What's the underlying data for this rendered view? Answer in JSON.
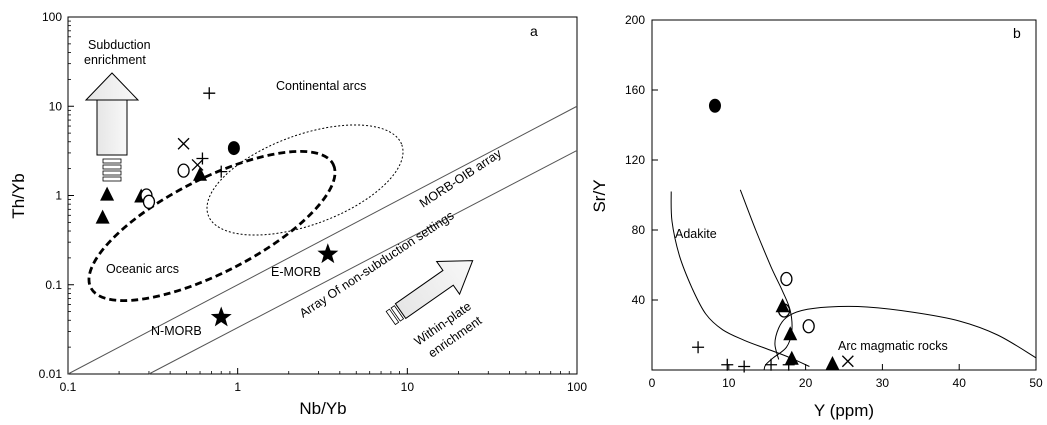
{
  "chart_data": [
    {
      "type": "scatter",
      "panel_label": "a",
      "xlabel": "Nb/Yb",
      "ylabel": "Th/Yb",
      "xscale": "log",
      "yscale": "log",
      "xlim": [
        0.1,
        100
      ],
      "ylim": [
        0.01,
        100
      ],
      "x_ticks": [
        "0.1",
        "1",
        "10",
        "100"
      ],
      "y_ticks": [
        "0.01",
        "0.1",
        "1",
        "10",
        "100"
      ],
      "x_tick_values": [
        0.1,
        1,
        10,
        100
      ],
      "y_tick_values": [
        0.01,
        0.1,
        1,
        10,
        100
      ],
      "grid": false,
      "annotations": {
        "subduction": [
          "Subduction",
          "enrichment"
        ],
        "continental_arcs": "Continental arcs",
        "oceanic_arcs": "Oceanic arcs",
        "morb_oib": "MORB-OIB array",
        "non_subduction": "Array Of non-subduction settings",
        "emorb": "E-MORB",
        "nmorb": "N-MORB",
        "within_plate": [
          "Within-plate",
          "enrichment"
        ]
      },
      "series": [
        {
          "marker": "filled-triangle",
          "points": [
            [
              0.17,
              1.05
            ],
            [
              0.16,
              0.58
            ],
            [
              0.27,
              1.0
            ],
            [
              0.6,
              1.75
            ]
          ]
        },
        {
          "marker": "open-circle",
          "points": [
            [
              0.29,
              1.0
            ],
            [
              0.3,
              0.85
            ],
            [
              0.48,
              1.9
            ]
          ]
        },
        {
          "marker": "plus",
          "points": [
            [
              0.68,
              14
            ],
            [
              0.62,
              2.6
            ],
            [
              0.8,
              1.85
            ]
          ]
        },
        {
          "marker": "cross",
          "points": [
            [
              0.48,
              3.8
            ],
            [
              0.58,
              2.2
            ]
          ]
        },
        {
          "marker": "filled-circle",
          "points": [
            [
              0.95,
              3.4
            ]
          ]
        },
        {
          "marker": "filled-star",
          "points": [
            [
              0.8,
              0.043
            ],
            [
              3.4,
              0.22
            ]
          ]
        }
      ],
      "reference_lines": [
        {
          "points": [
            [
              0.1,
              0.01
            ],
            [
              100,
              10
            ]
          ]
        },
        {
          "points": [
            [
              0.3,
              0.01
            ],
            [
              100,
              3.2
            ]
          ]
        }
      ]
    },
    {
      "type": "scatter",
      "panel_label": "b",
      "xlabel": "Y (ppm)",
      "ylabel": "Sr/Y",
      "xlim": [
        0,
        50
      ],
      "ylim": [
        0,
        200
      ],
      "x_ticks": [
        "0",
        "10",
        "20",
        "30",
        "40",
        "50"
      ],
      "y_ticks": [
        "40",
        "80",
        "120",
        "160",
        "200"
      ],
      "x_tick_values": [
        0,
        10,
        20,
        30,
        40,
        50
      ],
      "y_tick_values": [
        40,
        80,
        120,
        160,
        200
      ],
      "grid": false,
      "annotations": {
        "adakite": "Adakite",
        "arc": "Arc magmatic rocks"
      },
      "series": [
        {
          "marker": "filled-circle",
          "points": [
            [
              8.2,
              151
            ]
          ]
        },
        {
          "marker": "open-circle",
          "points": [
            [
              17.5,
              52
            ],
            [
              17.2,
              34
            ],
            [
              20.4,
              25
            ]
          ]
        },
        {
          "marker": "filled-triangle",
          "points": [
            [
              17,
              37
            ],
            [
              18,
              21
            ],
            [
              18.2,
              7
            ],
            [
              23.5,
              4
            ]
          ]
        },
        {
          "marker": "plus",
          "points": [
            [
              6,
              13
            ],
            [
              9.8,
              3
            ],
            [
              12,
              2
            ],
            [
              15.5,
              3
            ],
            [
              17.8,
              3
            ]
          ]
        },
        {
          "marker": "cross",
          "points": [
            [
              25.5,
              5
            ]
          ]
        }
      ],
      "curves": [
        [
          [
            2.5,
            102
          ],
          [
            2.6,
            85
          ],
          [
            3.6,
            65
          ],
          [
            5.2,
            47
          ],
          [
            7,
            32
          ],
          [
            9.2,
            23
          ],
          [
            12,
            17
          ],
          [
            15,
            12
          ],
          [
            18,
            7
          ],
          [
            20.5,
            2
          ]
        ],
        [
          [
            11.5,
            103
          ],
          [
            13.5,
            80
          ],
          [
            15.5,
            59
          ],
          [
            17,
            45
          ],
          [
            18,
            34
          ],
          [
            18.2,
            22
          ],
          [
            17.5,
            13
          ],
          [
            15.8,
            7
          ],
          [
            14.8,
            3
          ],
          [
            14.6,
            0
          ]
        ],
        [
          [
            16.5,
            6
          ],
          [
            16,
            15
          ],
          [
            16.5,
            24
          ],
          [
            17.5,
            30
          ],
          [
            19.5,
            34
          ],
          [
            23,
            36
          ],
          [
            28,
            36
          ],
          [
            34,
            33
          ],
          [
            40,
            28
          ],
          [
            45,
            20
          ],
          [
            50,
            7
          ]
        ]
      ]
    }
  ]
}
